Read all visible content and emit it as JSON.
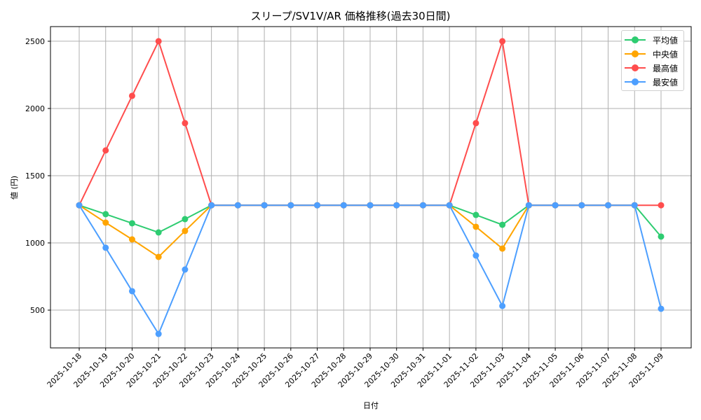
{
  "chart_data": {
    "type": "line",
    "title": "スリープ/SV1V/AR 価格推移(過去30日間)",
    "xlabel": "日付",
    "ylabel": "値 (円)",
    "ylim": [
      219,
      2609
    ],
    "yticks": [
      500,
      1000,
      1500,
      2000,
      2500
    ],
    "grid": true,
    "legend_position": "upper right",
    "categories": [
      "2025-10-18",
      "2025-10-19",
      "2025-10-20",
      "2025-10-21",
      "2025-10-22",
      "2025-10-23",
      "2025-10-24",
      "2025-10-25",
      "2025-10-26",
      "2025-10-27",
      "2025-10-28",
      "2025-10-29",
      "2025-10-30",
      "2025-10-31",
      "2025-11-01",
      "2025-11-02",
      "2025-11-03",
      "2025-11-04",
      "2025-11-05",
      "2025-11-06",
      "2025-11-07",
      "2025-11-08",
      "2025-11-09"
    ],
    "series": [
      {
        "name": "平均値",
        "color": "#2ecc71",
        "values": [
          1280,
          1214,
          1146,
          1078,
          1177,
          1280,
          1280,
          1280,
          1280,
          1280,
          1280,
          1280,
          1280,
          1280,
          1280,
          1208,
          1135,
          1280,
          1280,
          1280,
          1280,
          1280,
          1047
        ]
      },
      {
        "name": "中央値",
        "color": "#ffa500",
        "values": [
          1280,
          1151,
          1026,
          896,
          1089,
          1280,
          1280,
          1280,
          1280,
          1280,
          1280,
          1280,
          1280,
          1280,
          1280,
          1120,
          958,
          1280,
          1280,
          1280,
          1280,
          1280,
          null
        ]
      },
      {
        "name": "最高値",
        "color": "#ff4d4d",
        "values": [
          1280,
          1688,
          2094,
          2500,
          1891,
          1280,
          1280,
          1280,
          1280,
          1280,
          1280,
          1280,
          1280,
          1280,
          1280,
          1891,
          2500,
          1280,
          1280,
          1280,
          1280,
          1280,
          1280
        ]
      },
      {
        "name": "最安値",
        "color": "#4d9fff",
        "values": [
          1280,
          964,
          641,
          323,
          802,
          1280,
          1280,
          1280,
          1280,
          1280,
          1280,
          1280,
          1280,
          1280,
          1280,
          906,
          531,
          1280,
          1280,
          1280,
          1280,
          1280,
          510
        ]
      }
    ]
  }
}
